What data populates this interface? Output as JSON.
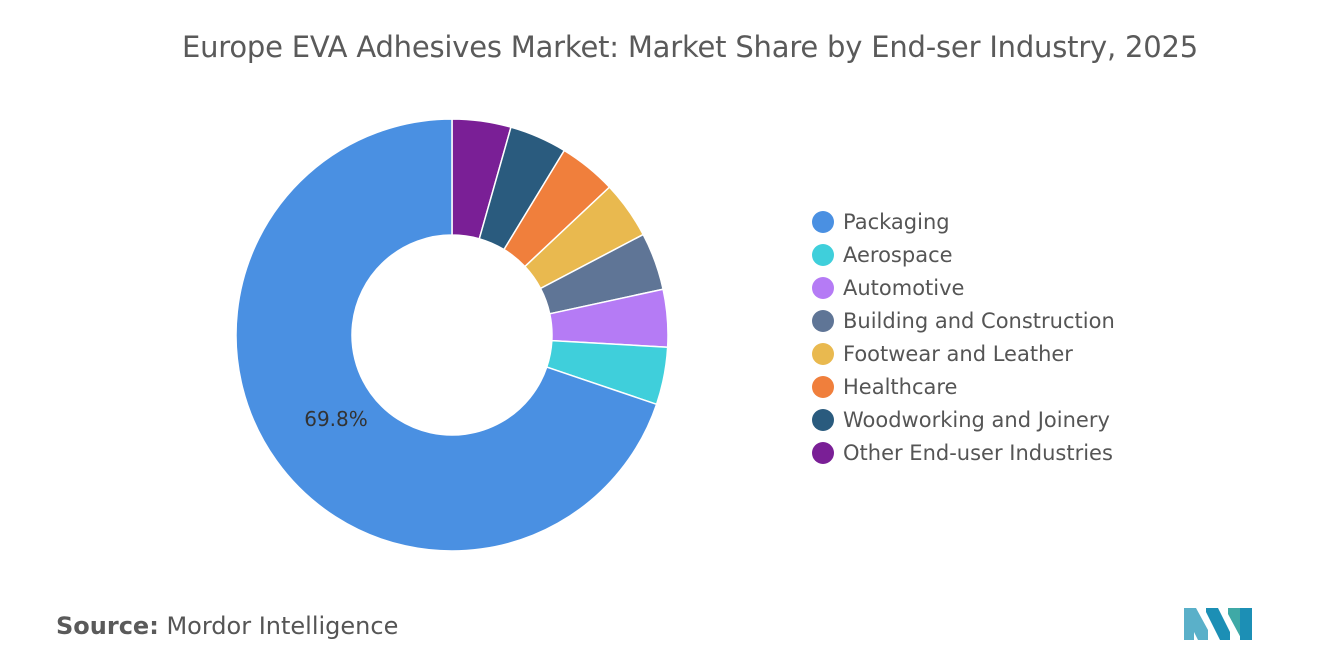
{
  "title": "Europe EVA Adhesives Market: Market Share by End-ser Industry, 2025",
  "source": {
    "label": "Source:",
    "value": "Mordor Intelligence"
  },
  "logo": {
    "icon": "mordor-intelligence-logo-icon",
    "colors": [
      "#5ab0c9",
      "#1c8fb5",
      "#3fa9a6"
    ]
  },
  "chart_data": {
    "type": "pie",
    "variant": "donut",
    "legend_position": "right",
    "data_labels": [
      {
        "category": "Packaging",
        "text": "69.8%"
      }
    ],
    "slices": [
      {
        "label": "Packaging",
        "value": 69.8,
        "color": "#4a90e2"
      },
      {
        "label": "Aerospace",
        "value": 4.3,
        "color": "#3fcfdb"
      },
      {
        "label": "Automotive",
        "value": 4.3,
        "color": "#b57bf5"
      },
      {
        "label": "Building and Construction",
        "value": 4.3,
        "color": "#5f7596"
      },
      {
        "label": "Footwear and Leather",
        "value": 4.3,
        "color": "#e9b94f"
      },
      {
        "label": "Healthcare",
        "value": 4.3,
        "color": "#f07f3c"
      },
      {
        "label": "Woodworking and Joinery",
        "value": 4.3,
        "color": "#2a5b7e"
      },
      {
        "label": "Other End-user Industries",
        "value": 4.4,
        "color": "#7a1f96"
      }
    ]
  }
}
